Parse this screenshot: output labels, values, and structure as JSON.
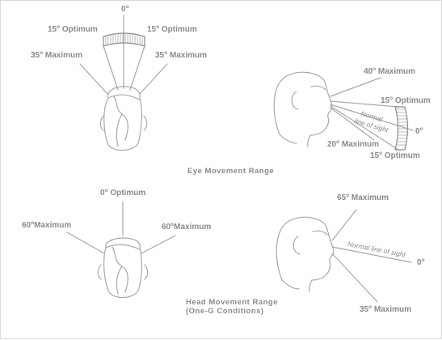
{
  "colors": {
    "line": "#a8a8a8",
    "text": "#8a8a8a",
    "background": "#ffffff"
  },
  "eye_section": {
    "caption": "Eye Movement Range",
    "top_view": {
      "center_angle": "0",
      "left_optimum": "15",
      "right_optimum": "15",
      "left_maximum": "35",
      "right_maximum": "35",
      "optimum_word": "Optimum",
      "maximum_word": "Maximum"
    },
    "side_view": {
      "up_maximum": "40",
      "up_optimum": "15",
      "center_angle": "0",
      "down_maximum": "20",
      "down_optimum": "15",
      "normal_line_1": "Normal",
      "normal_line_2": "line of sight",
      "optimum_word": "Optimum",
      "maximum_word": "Maximum"
    }
  },
  "head_section": {
    "caption_1": "Head Movement Range",
    "caption_2": "(One-G Conditions)",
    "top_view": {
      "center_label": "0",
      "left_maximum": "60",
      "right_maximum": "60",
      "optimum_word": "Optimum",
      "maximum_word": "Maximum"
    },
    "side_view": {
      "up_maximum": "65",
      "down_maximum": "35",
      "center_angle": "0",
      "normal_line": "Normal line of sight",
      "maximum_word": "Maximum"
    }
  }
}
